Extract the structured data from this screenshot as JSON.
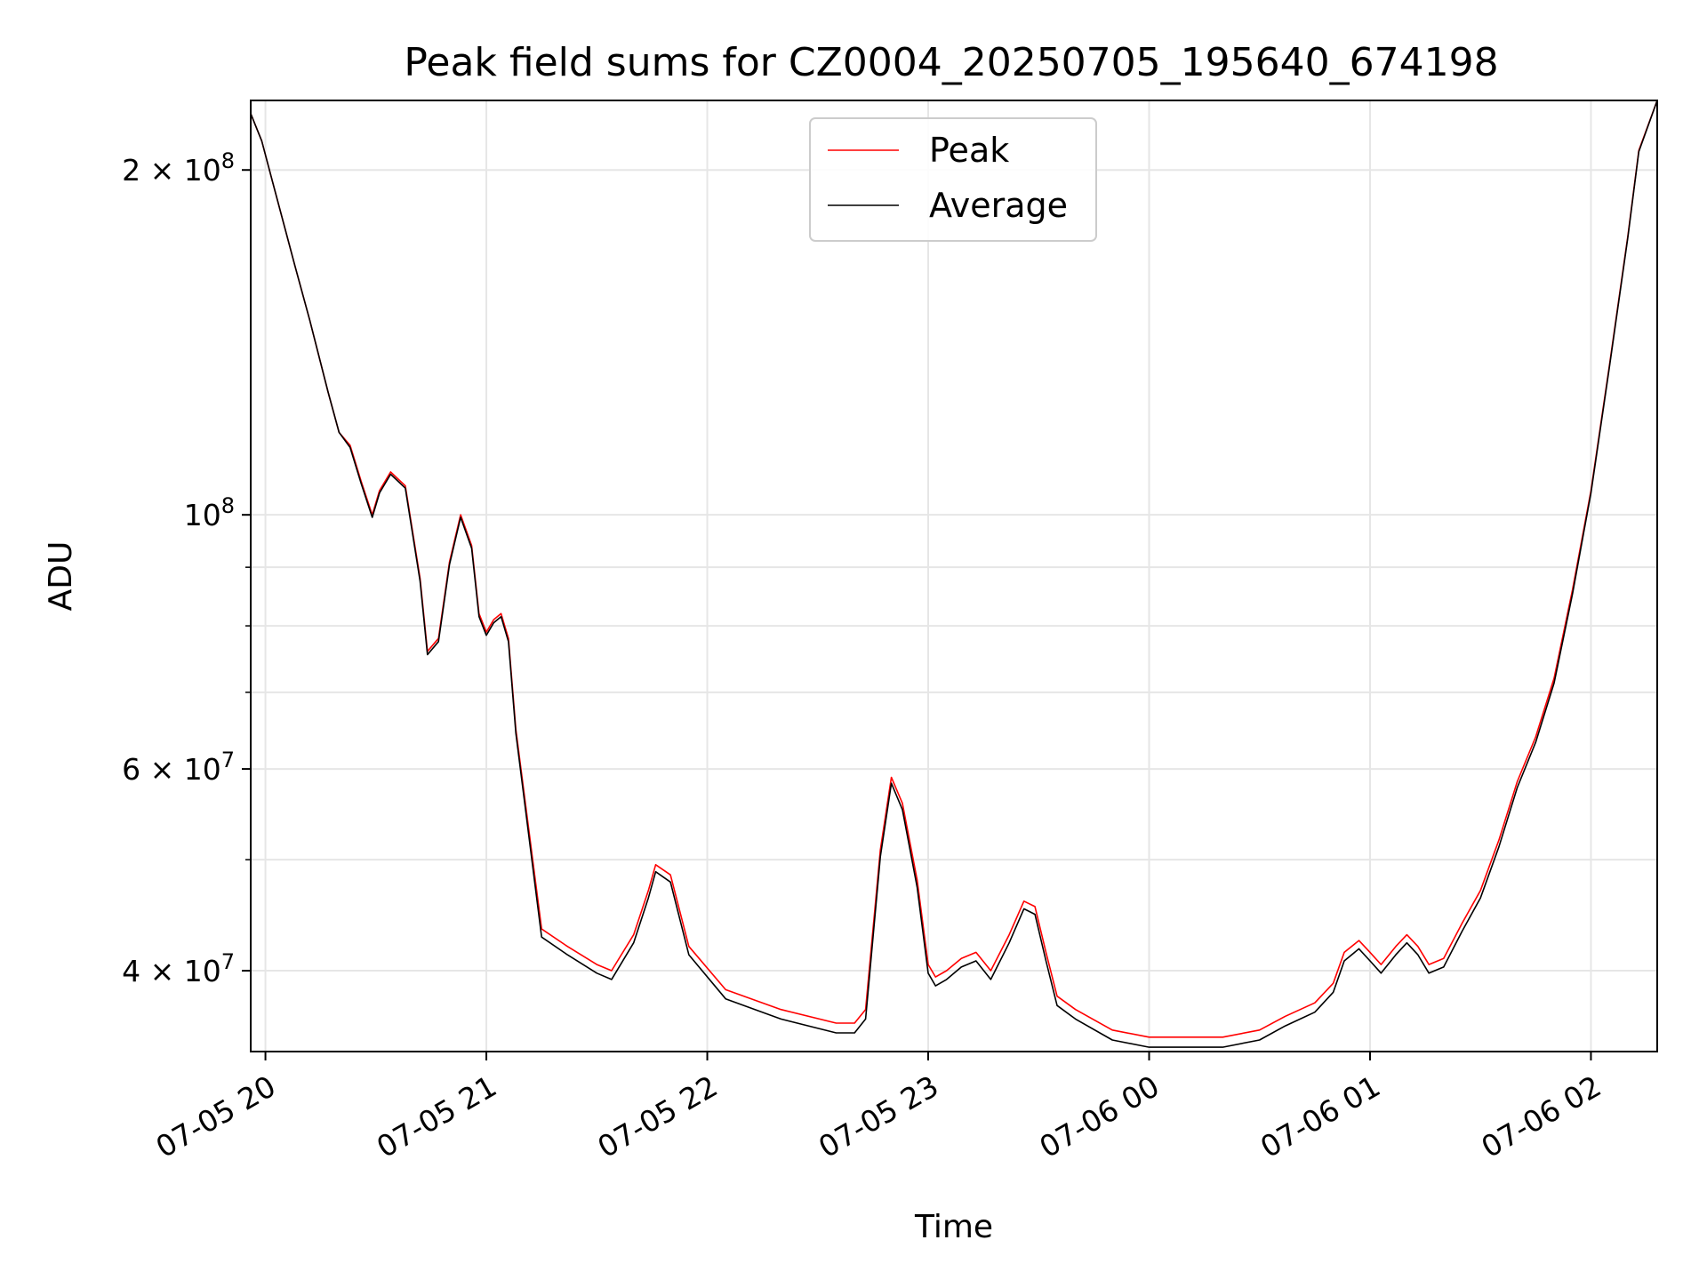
{
  "chart_data": {
    "type": "line",
    "title": "Peak field sums for CZ0004_20250705_195640_674198",
    "xlabel": "Time",
    "ylabel": "ADU",
    "x_axis_type": "datetime",
    "y_scale": "log",
    "xlim": [
      "2025-07-05 19:56",
      "2025-07-06 02:18"
    ],
    "ylim": [
      34000000,
      230000000
    ],
    "grid": true,
    "legend_position": "upper center",
    "x_ticks": [
      "07-05 20",
      "07-05 21",
      "07-05 22",
      "07-05 23",
      "07-06 00",
      "07-06 01",
      "07-06 02"
    ],
    "x_tick_times": [
      "2025-07-05 20:00",
      "2025-07-05 21:00",
      "2025-07-05 22:00",
      "2025-07-05 23:00",
      "2025-07-06 00:00",
      "2025-07-06 01:00",
      "2025-07-06 02:00"
    ],
    "y_ticks_major": [
      {
        "value": 200000000,
        "mantissa": "2",
        "exponent": "8"
      },
      {
        "value": 100000000,
        "mantissa": "",
        "exponent": "8"
      },
      {
        "value": 60000000,
        "mantissa": "6",
        "exponent": "7"
      },
      {
        "value": 40000000,
        "mantissa": "4",
        "exponent": "7"
      }
    ],
    "y_ticks_minor": [
      90000000,
      80000000,
      70000000,
      50000000
    ],
    "series": [
      {
        "name": "Peak",
        "color": "#ff0000",
        "x": [
          "2025-07-05 19:56",
          "2025-07-05 19:59",
          "2025-07-05 20:02",
          "2025-07-05 20:08",
          "2025-07-05 20:12",
          "2025-07-05 20:17",
          "2025-07-05 20:20",
          "2025-07-05 20:23",
          "2025-07-05 20:26",
          "2025-07-05 20:29",
          "2025-07-05 20:31",
          "2025-07-05 20:34",
          "2025-07-05 20:38",
          "2025-07-05 20:42",
          "2025-07-05 20:44",
          "2025-07-05 20:47",
          "2025-07-05 20:50",
          "2025-07-05 20:53",
          "2025-07-05 20:56",
          "2025-07-05 20:58",
          "2025-07-05 21:00",
          "2025-07-05 21:02",
          "2025-07-05 21:04",
          "2025-07-05 21:06",
          "2025-07-05 21:08",
          "2025-07-05 21:15",
          "2025-07-05 21:22",
          "2025-07-05 21:30",
          "2025-07-05 21:34",
          "2025-07-05 21:40",
          "2025-07-05 21:44",
          "2025-07-05 21:46",
          "2025-07-05 21:50",
          "2025-07-05 21:55",
          "2025-07-05 22:05",
          "2025-07-05 22:20",
          "2025-07-05 22:35",
          "2025-07-05 22:40",
          "2025-07-05 22:43",
          "2025-07-05 22:47",
          "2025-07-05 22:50",
          "2025-07-05 22:53",
          "2025-07-05 22:57",
          "2025-07-05 23:00",
          "2025-07-05 23:02",
          "2025-07-05 23:05",
          "2025-07-05 23:09",
          "2025-07-05 23:13",
          "2025-07-05 23:17",
          "2025-07-05 23:22",
          "2025-07-05 23:26",
          "2025-07-05 23:29",
          "2025-07-05 23:32",
          "2025-07-05 23:35",
          "2025-07-05 23:40",
          "2025-07-05 23:50",
          "2025-07-06 00:00",
          "2025-07-06 00:10",
          "2025-07-06 00:20",
          "2025-07-06 00:30",
          "2025-07-06 00:37",
          "2025-07-06 00:45",
          "2025-07-06 00:50",
          "2025-07-06 00:53",
          "2025-07-06 00:57",
          "2025-07-06 01:00",
          "2025-07-06 01:03",
          "2025-07-06 01:07",
          "2025-07-06 01:10",
          "2025-07-06 01:13",
          "2025-07-06 01:16",
          "2025-07-06 01:20",
          "2025-07-06 01:25",
          "2025-07-06 01:30",
          "2025-07-06 01:35",
          "2025-07-06 01:40",
          "2025-07-06 01:45",
          "2025-07-06 01:50",
          "2025-07-06 01:55",
          "2025-07-06 02:00",
          "2025-07-06 02:05",
          "2025-07-06 02:10",
          "2025-07-06 02:13",
          "2025-07-06 02:18"
        ],
        "values": [
          224000000,
          212000000,
          195000000,
          165000000,
          148000000,
          128000000,
          118000000,
          115000000,
          107000000,
          100000000,
          105000000,
          109000000,
          106000000,
          88000000,
          76000000,
          78000000,
          91000000,
          100000000,
          94000000,
          82000000,
          79000000,
          81000000,
          82000000,
          78000000,
          65000000,
          43500000,
          42000000,
          40500000,
          40000000,
          43000000,
          47000000,
          49500000,
          48500000,
          42000000,
          38500000,
          37000000,
          36000000,
          36000000,
          37000000,
          51000000,
          59000000,
          56000000,
          48000000,
          40500000,
          39500000,
          40000000,
          41000000,
          41500000,
          40000000,
          43000000,
          46000000,
          45500000,
          41500000,
          38000000,
          37000000,
          35500000,
          35000000,
          35000000,
          35000000,
          35500000,
          36500000,
          37500000,
          39000000,
          41500000,
          42500000,
          41500000,
          40500000,
          42000000,
          43000000,
          42000000,
          40500000,
          41000000,
          44000000,
          47000000,
          52000000,
          58500000,
          64000000,
          72000000,
          86000000,
          105000000,
          135000000,
          175000000,
          208000000,
          230000000
        ]
      },
      {
        "name": "Average",
        "color": "#000000",
        "x": [
          "2025-07-05 19:56",
          "2025-07-05 19:59",
          "2025-07-05 20:02",
          "2025-07-05 20:08",
          "2025-07-05 20:12",
          "2025-07-05 20:17",
          "2025-07-05 20:20",
          "2025-07-05 20:23",
          "2025-07-05 20:26",
          "2025-07-05 20:29",
          "2025-07-05 20:31",
          "2025-07-05 20:34",
          "2025-07-05 20:38",
          "2025-07-05 20:42",
          "2025-07-05 20:44",
          "2025-07-05 20:47",
          "2025-07-05 20:50",
          "2025-07-05 20:53",
          "2025-07-05 20:56",
          "2025-07-05 20:58",
          "2025-07-05 21:00",
          "2025-07-05 21:02",
          "2025-07-05 21:04",
          "2025-07-05 21:06",
          "2025-07-05 21:08",
          "2025-07-05 21:15",
          "2025-07-05 21:22",
          "2025-07-05 21:30",
          "2025-07-05 21:34",
          "2025-07-05 21:40",
          "2025-07-05 21:44",
          "2025-07-05 21:46",
          "2025-07-05 21:50",
          "2025-07-05 21:55",
          "2025-07-05 22:05",
          "2025-07-05 22:20",
          "2025-07-05 22:35",
          "2025-07-05 22:40",
          "2025-07-05 22:43",
          "2025-07-05 22:47",
          "2025-07-05 22:50",
          "2025-07-05 22:53",
          "2025-07-05 22:57",
          "2025-07-05 23:00",
          "2025-07-05 23:02",
          "2025-07-05 23:05",
          "2025-07-05 23:09",
          "2025-07-05 23:13",
          "2025-07-05 23:17",
          "2025-07-05 23:22",
          "2025-07-05 23:26",
          "2025-07-05 23:29",
          "2025-07-05 23:32",
          "2025-07-05 23:35",
          "2025-07-05 23:40",
          "2025-07-05 23:50",
          "2025-07-06 00:00",
          "2025-07-06 00:10",
          "2025-07-06 00:20",
          "2025-07-06 00:30",
          "2025-07-06 00:37",
          "2025-07-06 00:45",
          "2025-07-06 00:50",
          "2025-07-06 00:53",
          "2025-07-06 00:57",
          "2025-07-06 01:00",
          "2025-07-06 01:03",
          "2025-07-06 01:07",
          "2025-07-06 01:10",
          "2025-07-06 01:13",
          "2025-07-06 01:16",
          "2025-07-06 01:20",
          "2025-07-06 01:25",
          "2025-07-06 01:30",
          "2025-07-06 01:35",
          "2025-07-06 01:40",
          "2025-07-06 01:45",
          "2025-07-06 01:50",
          "2025-07-06 01:55",
          "2025-07-06 02:00",
          "2025-07-06 02:05",
          "2025-07-06 02:10",
          "2025-07-06 02:13",
          "2025-07-06 02:18"
        ],
        "values": [
          224000000,
          212000000,
          195000000,
          165000000,
          148000000,
          128000000,
          118000000,
          114500000,
          106500000,
          99500000,
          104500000,
          108500000,
          105500000,
          87500000,
          75500000,
          77500000,
          90500000,
          99500000,
          93500000,
          81500000,
          78500000,
          80500000,
          81500000,
          77500000,
          64500000,
          42800000,
          41300000,
          39800000,
          39300000,
          42300000,
          46300000,
          48800000,
          47800000,
          41300000,
          37800000,
          36300000,
          35300000,
          35300000,
          36300000,
          50300000,
          58300000,
          55300000,
          47300000,
          39800000,
          38800000,
          39300000,
          40300000,
          40800000,
          39300000,
          42300000,
          45300000,
          44800000,
          40800000,
          37300000,
          36300000,
          34800000,
          34300000,
          34300000,
          34300000,
          34800000,
          35800000,
          36800000,
          38300000,
          40800000,
          41800000,
          40800000,
          39800000,
          41300000,
          42300000,
          41300000,
          39800000,
          40300000,
          43300000,
          46300000,
          51300000,
          57800000,
          63300000,
          71300000,
          85300000,
          104500000,
          134500000,
          174500000,
          207500000,
          230000000
        ]
      }
    ]
  }
}
